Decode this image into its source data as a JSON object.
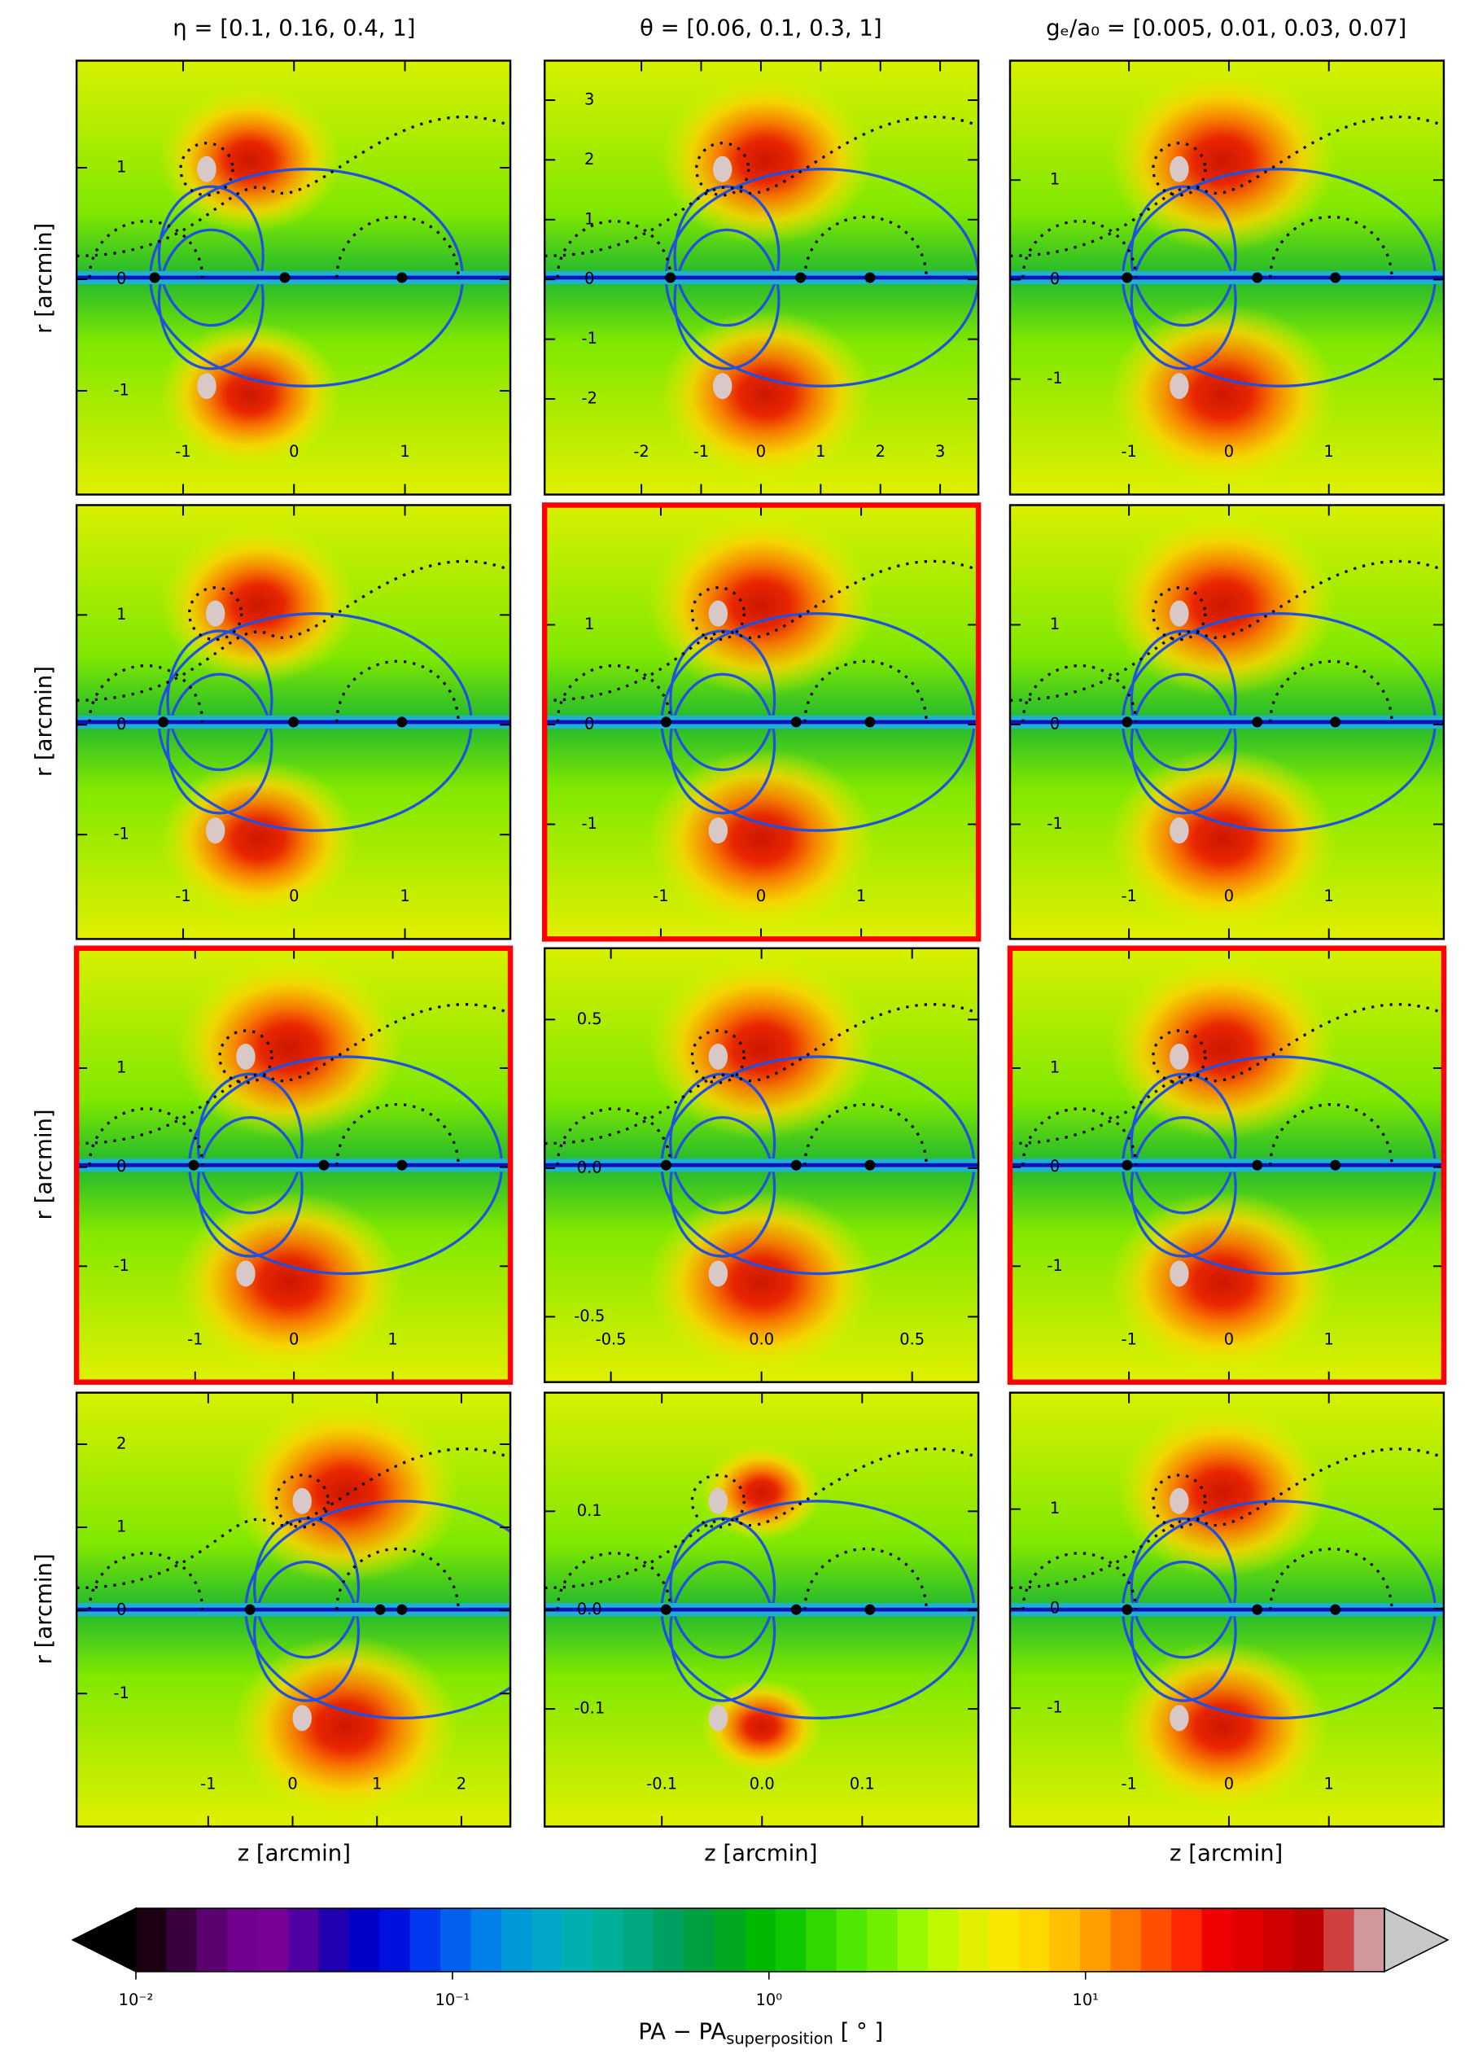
{
  "column_titles": [
    "η = [0.1,  0.16,  0.4,  1]",
    "θ = [0.06,  0.1,  0.3,  1]",
    "gₑ/a₀ = [0.005,  0.01,  0.03,  0.07]"
  ],
  "xlabel": "z [arcmin]",
  "ylabel": "r [arcmin]",
  "chart_data": [
    {
      "type": "contour",
      "xlim": [
        -1.96,
        1.95
      ],
      "ylim": [
        -1.93,
        1.96
      ],
      "xticks": [
        -1,
        0,
        1
      ],
      "yticks": [
        -1,
        0,
        1
      ],
      "highlighted": false
    },
    {
      "type": "contour",
      "xlim": [
        -3.62,
        3.64
      ],
      "ylim": [
        -3.6,
        3.66
      ],
      "xticks": [
        -2,
        -1,
        0,
        1,
        2,
        3
      ],
      "yticks": [
        -2,
        -1,
        0,
        1,
        2,
        3
      ],
      "highlighted": false
    },
    {
      "type": "contour",
      "xlim": [
        -2.19,
        2.15
      ],
      "ylim": [
        -2.16,
        2.2
      ],
      "xticks": [
        -1,
        0,
        1
      ],
      "yticks": [
        -1,
        0,
        1
      ],
      "highlighted": false
    },
    {
      "type": "contour",
      "xlim": [
        -1.96,
        1.95
      ],
      "ylim": [
        -1.95,
        2.0
      ],
      "xticks": [
        -1,
        0,
        1
      ],
      "yticks": [
        -1,
        0,
        1
      ],
      "highlighted": false
    },
    {
      "type": "contour",
      "xlim": [
        -2.16,
        2.17
      ],
      "ylim": [
        -2.15,
        2.2
      ],
      "xticks": [
        -1,
        0,
        1
      ],
      "yticks": [
        -1,
        0,
        1
      ],
      "highlighted": true
    },
    {
      "type": "contour",
      "xlim": [
        -2.19,
        2.15
      ],
      "ylim": [
        -2.15,
        2.2
      ],
      "xticks": [
        -1,
        0,
        1
      ],
      "yticks": [
        -1,
        0,
        1
      ],
      "highlighted": false
    },
    {
      "type": "contour",
      "xlim": [
        -2.2,
        2.19
      ],
      "ylim": [
        -2.17,
        2.21
      ],
      "xticks": [
        -1,
        0,
        1
      ],
      "yticks": [
        -1,
        0,
        1
      ],
      "highlighted": true
    },
    {
      "type": "contour",
      "xlim": [
        -0.72,
        0.72
      ],
      "ylim": [
        -0.72,
        0.74
      ],
      "xticks": [
        -0.5,
        {
          "value": 0,
          "label": "0.0"
        },
        0.5
      ],
      "yticks": [
        -0.5,
        {
          "value": 0,
          "label": "0.0"
        },
        0.5
      ],
      "highlighted": false
    },
    {
      "type": "contour",
      "xlim": [
        -2.19,
        2.15
      ],
      "ylim": [
        -2.17,
        2.21
      ],
      "xticks": [
        -1,
        0,
        1
      ],
      "yticks": [
        -1,
        0,
        1
      ],
      "highlighted": true
    },
    {
      "type": "contour",
      "xlim": [
        -2.56,
        2.58
      ],
      "ylim": [
        -2.6,
        2.62
      ],
      "xticks": [
        -1,
        0,
        1,
        2
      ],
      "yticks": [
        -1,
        0,
        1,
        2
      ],
      "highlighted": false
    },
    {
      "type": "contour",
      "xlim": [
        -0.217,
        0.216
      ],
      "ylim": [
        -0.219,
        0.22
      ],
      "xticks": [
        -0.1,
        {
          "value": 0,
          "label": "0.0"
        },
        0.1
      ],
      "yticks": [
        -0.1,
        {
          "value": 0,
          "label": "0.0"
        },
        0.1
      ],
      "highlighted": false
    },
    {
      "type": "contour",
      "xlim": [
        -2.19,
        2.15
      ],
      "ylim": [
        -2.19,
        2.17
      ],
      "xticks": [
        -1,
        0,
        1
      ],
      "yticks": [
        -1,
        0,
        1
      ],
      "highlighted": false
    }
  ],
  "colorbar": {
    "log": true,
    "lim": [
      0.01,
      88
    ],
    "ticks": [
      {
        "value": 0.01,
        "label": "10⁻²"
      },
      {
        "value": 0.1,
        "label": "10⁻¹"
      },
      {
        "value": 1,
        "label": "10⁰"
      },
      {
        "value": 10,
        "label": "10¹"
      }
    ],
    "label_main": "PA − PA",
    "label_sub": "superposition",
    "label_unit": " [ ° ]",
    "under_color": "#000000",
    "over_color": "#c8c8c8",
    "colors": [
      "#1a0010",
      "#3a0040",
      "#5a0070",
      "#700090",
      "#780098",
      "#5000a0",
      "#2000b0",
      "#0000c8",
      "#0010e0",
      "#0038f0",
      "#0060f0",
      "#0080e8",
      "#0098d8",
      "#00a8c8",
      "#00b0b0",
      "#00b098",
      "#00a880",
      "#00a060",
      "#00a040",
      "#00a820",
      "#00b800",
      "#10c800",
      "#30d800",
      "#50e800",
      "#70f000",
      "#98f800",
      "#c0f800",
      "#e0f000",
      "#f8e800",
      "#ffd800",
      "#ffc000",
      "#ffa000",
      "#ff7800",
      "#ff5000",
      "#ff2800",
      "#f00000",
      "#e00000",
      "#d00000",
      "#c00000",
      "#d04040",
      "#d09898"
    ]
  }
}
